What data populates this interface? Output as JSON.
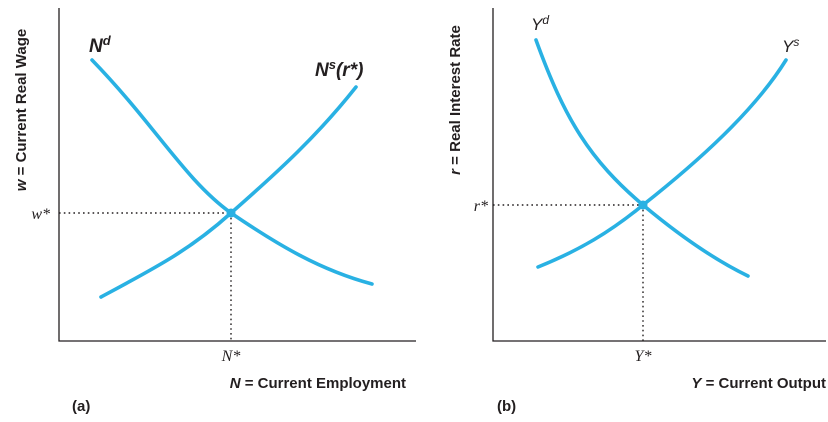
{
  "panel_a": {
    "panel_label": "(a)",
    "y_axis_var": "w",
    "y_axis_text": " = Current Real Wage",
    "x_axis_var": "N",
    "x_axis_text": " = Current Employment",
    "demand_base": "N",
    "demand_sup": "d",
    "supply_base": "N",
    "supply_sup": "s",
    "supply_arg": "(r*)",
    "eq_y_tick": "w*",
    "eq_x_tick": "N*"
  },
  "panel_b": {
    "panel_label": "(b)",
    "y_axis_var": "r",
    "y_axis_text": " = Real Interest Rate",
    "x_axis_var": "Y",
    "x_axis_text": " = Current Output",
    "demand_base": "Y",
    "demand_sup": "d",
    "supply_base": "Y",
    "supply_sup": "s",
    "eq_y_tick": "r*",
    "eq_x_tick": "Y*"
  },
  "colors": {
    "curve": "#29b1e3",
    "axis": "#231f20"
  }
}
